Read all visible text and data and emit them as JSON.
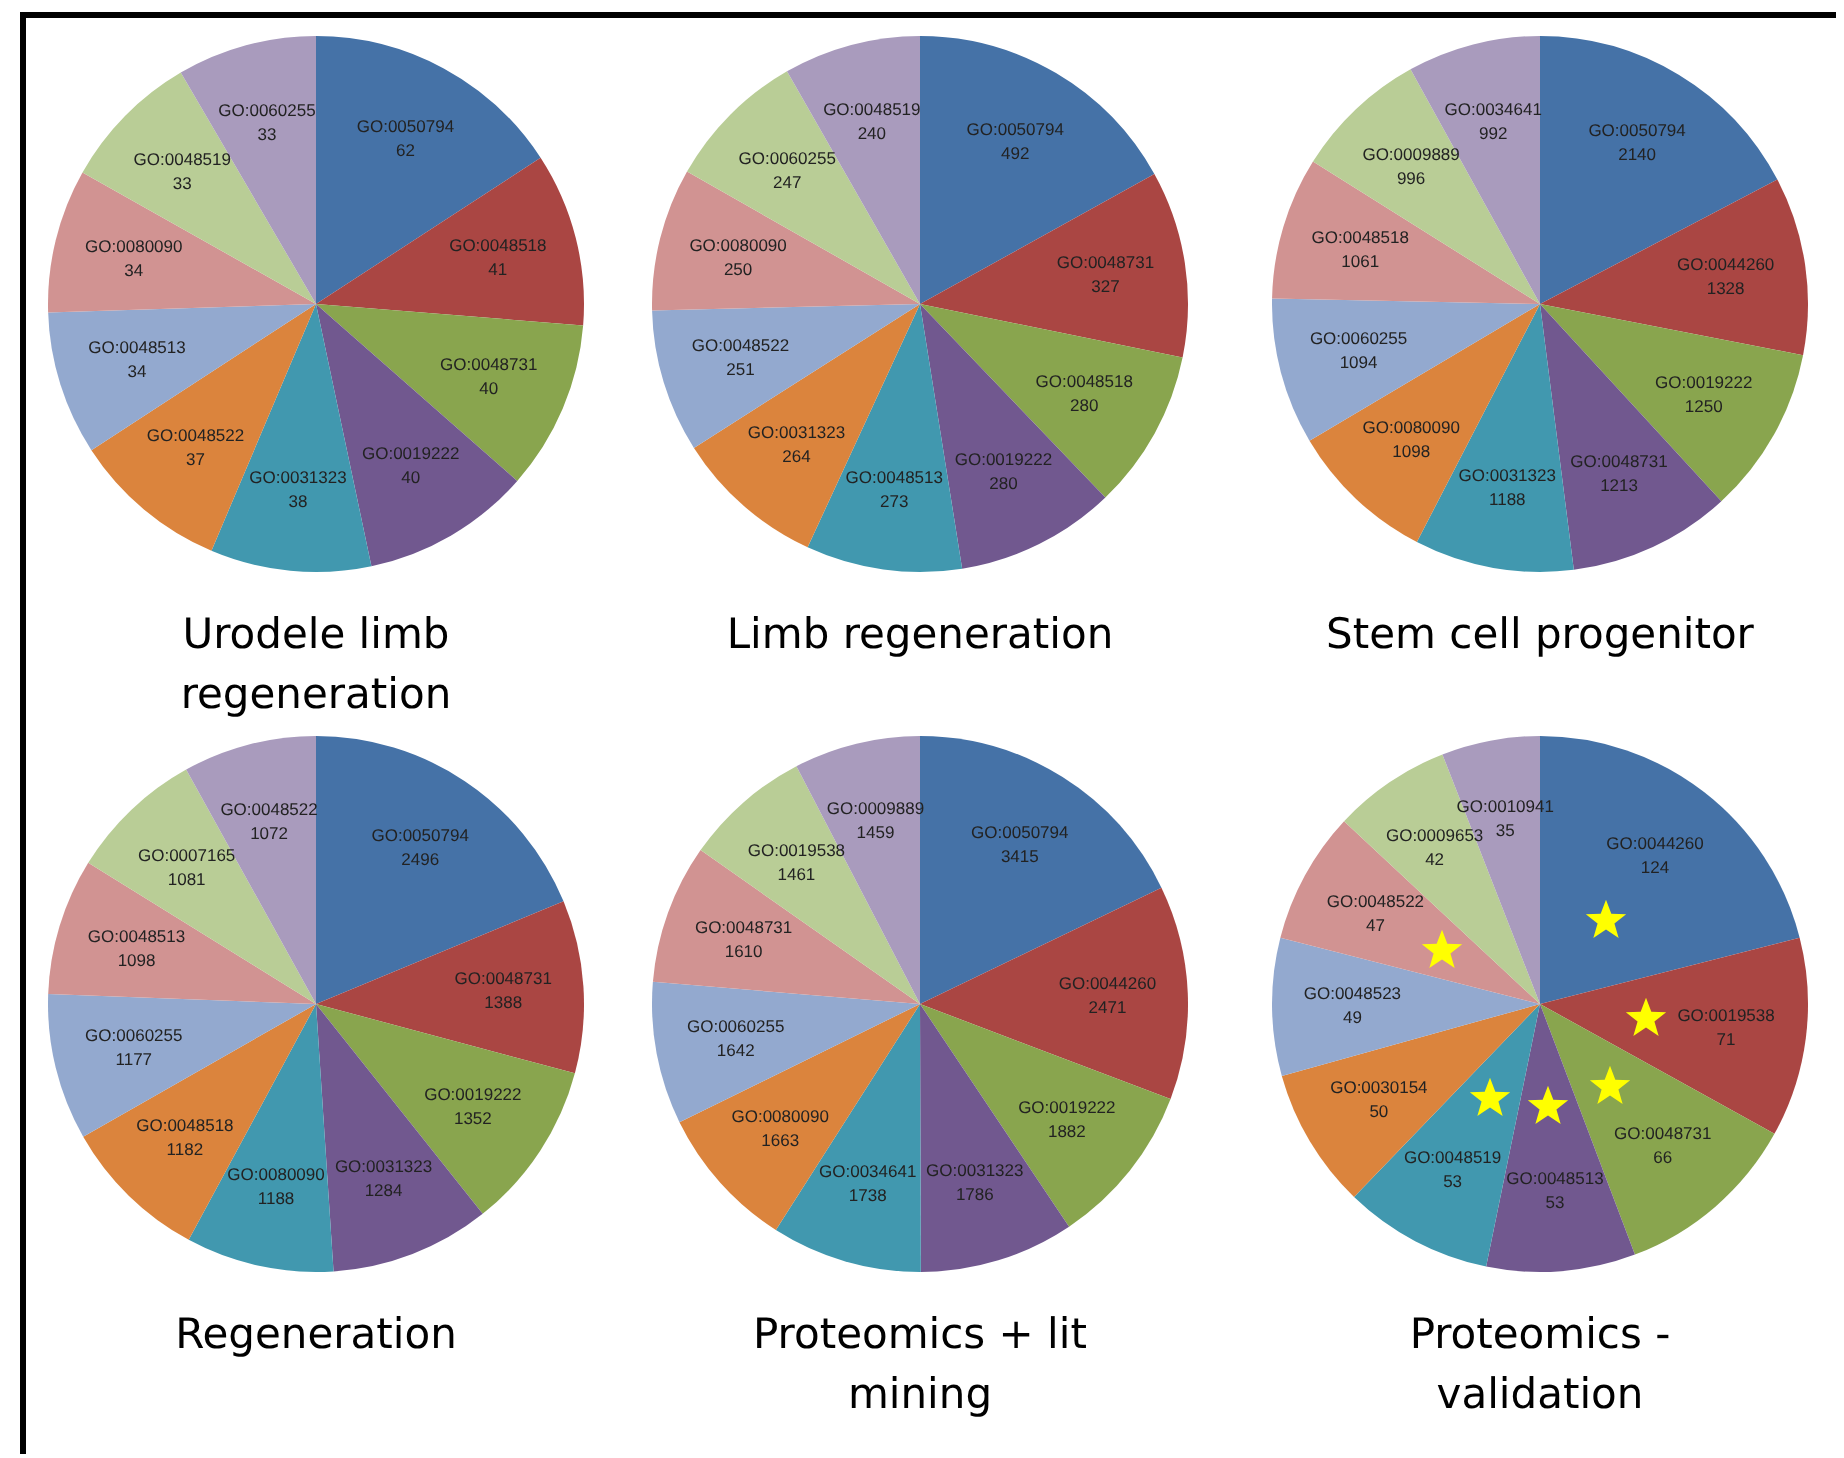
{
  "chart_data": [
    {
      "type": "pie",
      "title": "Urodele limb regeneration",
      "data_labels": true,
      "legend": false,
      "categories": [
        "GO:0050794",
        "GO:0048518",
        "GO:0048731",
        "GO:0019222",
        "GO:0031323",
        "GO:0048522",
        "GO:0048513",
        "GO:0080090",
        "GO:0048519",
        "GO:0060255"
      ],
      "values": [
        62,
        41,
        40,
        40,
        38,
        37,
        34,
        34,
        33,
        33
      ],
      "colors": [
        "#4572a7",
        "#aa4643",
        "#89a54e",
        "#71588f",
        "#4198af",
        "#db843d",
        "#93a9cf",
        "#d19392",
        "#b9cd96",
        "#a99bbd"
      ]
    },
    {
      "type": "pie",
      "title": "Limb regeneration",
      "data_labels": true,
      "legend": false,
      "categories": [
        "GO:0050794",
        "GO:0048731",
        "GO:0048518",
        "GO:0019222",
        "GO:0048513",
        "GO:0031323",
        "GO:0048522",
        "GO:0080090",
        "GO:0060255",
        "GO:0048519"
      ],
      "values": [
        492,
        327,
        280,
        280,
        273,
        264,
        251,
        250,
        247,
        240
      ],
      "colors": [
        "#4572a7",
        "#aa4643",
        "#89a54e",
        "#71588f",
        "#4198af",
        "#db843d",
        "#93a9cf",
        "#d19392",
        "#b9cd96",
        "#a99bbd"
      ]
    },
    {
      "type": "pie",
      "title": "Stem cell progenitor",
      "data_labels": true,
      "legend": false,
      "categories": [
        "GO:0050794",
        "GO:0044260",
        "GO:0019222",
        "GO:0048731",
        "GO:0031323",
        "GO:0080090",
        "GO:0060255",
        "GO:0048518",
        "GO:0009889",
        "GO:0034641"
      ],
      "values": [
        2140,
        1328,
        1250,
        1213,
        1188,
        1098,
        1094,
        1061,
        996,
        992
      ],
      "colors": [
        "#4572a7",
        "#aa4643",
        "#89a54e",
        "#71588f",
        "#4198af",
        "#db843d",
        "#93a9cf",
        "#d19392",
        "#b9cd96",
        "#a99bbd"
      ]
    },
    {
      "type": "pie",
      "title": "Regeneration",
      "data_labels": true,
      "legend": false,
      "categories": [
        "GO:0050794",
        "GO:0048731",
        "GO:0019222",
        "GO:0031323",
        "GO:0080090",
        "GO:0048518",
        "GO:0060255",
        "GO:0048513",
        "GO:0007165",
        "GO:0048522"
      ],
      "values": [
        2496,
        1388,
        1352,
        1284,
        1188,
        1182,
        1177,
        1098,
        1081,
        1072
      ],
      "colors": [
        "#4572a7",
        "#aa4643",
        "#89a54e",
        "#71588f",
        "#4198af",
        "#db843d",
        "#93a9cf",
        "#d19392",
        "#b9cd96",
        "#a99bbd"
      ]
    },
    {
      "type": "pie",
      "title": "Proteomics + lit mining",
      "data_labels": true,
      "legend": false,
      "categories": [
        "GO:0050794",
        "GO:0044260",
        "GO:0019222",
        "GO:0031323",
        "GO:0034641",
        "GO:0080090",
        "GO:0060255",
        "GO:0048731",
        "GO:0019538",
        "GO:0009889"
      ],
      "values": [
        3415,
        2471,
        1882,
        1786,
        1738,
        1663,
        1642,
        1610,
        1461,
        1459
      ],
      "colors": [
        "#4572a7",
        "#aa4643",
        "#89a54e",
        "#71588f",
        "#4198af",
        "#db843d",
        "#93a9cf",
        "#d19392",
        "#b9cd96",
        "#a99bbd"
      ]
    },
    {
      "type": "pie",
      "title": "Proteomics - validation",
      "data_labels": true,
      "legend": false,
      "categories": [
        "GO:0044260",
        "GO:0019538",
        "GO:0048731",
        "GO:0048513",
        "GO:0048519",
        "GO:0030154",
        "GO:0048523",
        "GO:0048522",
        "GO:0009653",
        "GO:0010941"
      ],
      "values": [
        124,
        71,
        66,
        53,
        53,
        50,
        49,
        47,
        42,
        35
      ],
      "colors": [
        "#4572a7",
        "#aa4643",
        "#89a54e",
        "#71588f",
        "#4198af",
        "#db843d",
        "#93a9cf",
        "#d19392",
        "#b9cd96",
        "#a99bbd"
      ]
    }
  ]
}
